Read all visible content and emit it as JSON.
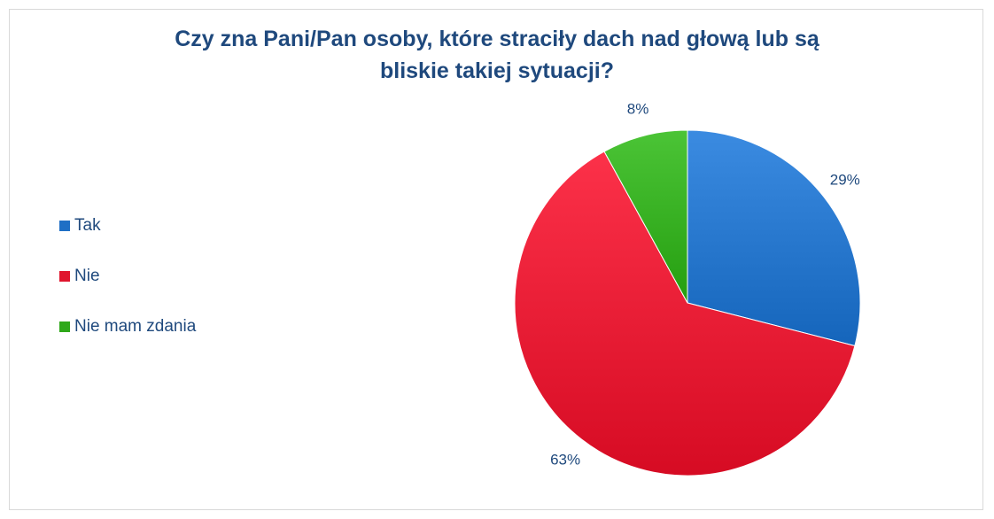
{
  "chart_data": {
    "type": "pie",
    "title_lines": [
      "Czy zna Pani/Pan osoby, które straciły dach nad głową lub są",
      "bliskie takiej sytuacji?"
    ],
    "categories": [
      "Tak",
      "Nie",
      "Nie mam zdania"
    ],
    "values": [
      29,
      63,
      8
    ],
    "data_labels": [
      "29%",
      "63%",
      "8%"
    ],
    "colors": [
      "#1f6fc5",
      "#e0152d",
      "#2fa81a"
    ],
    "legend_position": "left",
    "start_angle": "12 o'clock",
    "direction": "clockwise"
  }
}
